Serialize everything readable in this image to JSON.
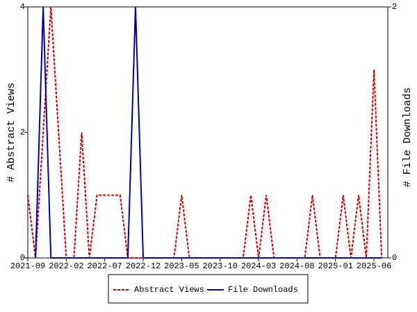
{
  "chart_data": {
    "type": "line",
    "y_label": "# Abstract Views",
    "y2_label": "# File Downloads",
    "x": [
      "2021-09",
      "2021-10",
      "2021-11",
      "2021-12",
      "2022-01",
      "2022-02",
      "2022-03",
      "2022-04",
      "2022-05",
      "2022-06",
      "2022-07",
      "2022-08",
      "2022-09",
      "2022-10",
      "2022-11",
      "2022-12",
      "2023-01",
      "2023-02",
      "2023-03",
      "2023-04",
      "2023-05",
      "2023-06",
      "2023-07",
      "2023-08",
      "2023-09",
      "2023-10",
      "2023-11",
      "2023-12",
      "2024-01",
      "2024-02",
      "2024-03",
      "2024-04",
      "2024-05",
      "2024-06",
      "2024-07",
      "2024-08",
      "2024-09",
      "2024-10",
      "2024-11",
      "2024-12",
      "2025-01",
      "2025-02",
      "2025-03",
      "2025-04",
      "2025-05",
      "2025-06",
      "2025-07"
    ],
    "xticks": [
      "2021-09",
      "2022-02",
      "2022-07",
      "2022-12",
      "2023-05",
      "2023-10",
      "2024-03",
      "2024-08",
      "2025-01",
      "2025-06"
    ],
    "ylim": [
      0,
      4
    ],
    "yticks": [
      0,
      2,
      4
    ],
    "y2lim": [
      0,
      2
    ],
    "y2ticks": [
      0,
      2
    ],
    "series": [
      {
        "name": "Abstract Views",
        "color": "#cc0000",
        "dashed": true,
        "values": [
          1,
          0,
          2,
          4,
          2,
          0,
          0,
          2,
          0,
          1,
          1,
          1,
          1,
          0,
          0,
          0,
          0,
          0,
          0,
          0,
          1,
          0,
          0,
          0,
          0,
          0,
          0,
          0,
          0,
          1,
          0,
          1,
          0,
          0,
          0,
          0,
          0,
          1,
          0,
          0,
          0,
          1,
          0,
          1,
          0,
          3,
          0
        ]
      },
      {
        "name": "File Downloads",
        "color": "#0000aa",
        "dashed": false,
        "axis": "y2",
        "values": [
          null,
          0,
          2,
          0,
          0,
          0,
          0,
          0,
          0,
          0,
          0,
          0,
          0,
          0,
          2,
          0,
          0,
          0,
          0,
          0,
          0,
          0,
          0,
          0,
          0,
          0,
          0,
          0,
          0,
          0,
          0,
          0,
          0,
          0,
          0,
          0,
          0,
          0,
          0,
          0,
          0,
          0,
          0,
          0,
          0,
          0,
          0
        ]
      }
    ]
  }
}
